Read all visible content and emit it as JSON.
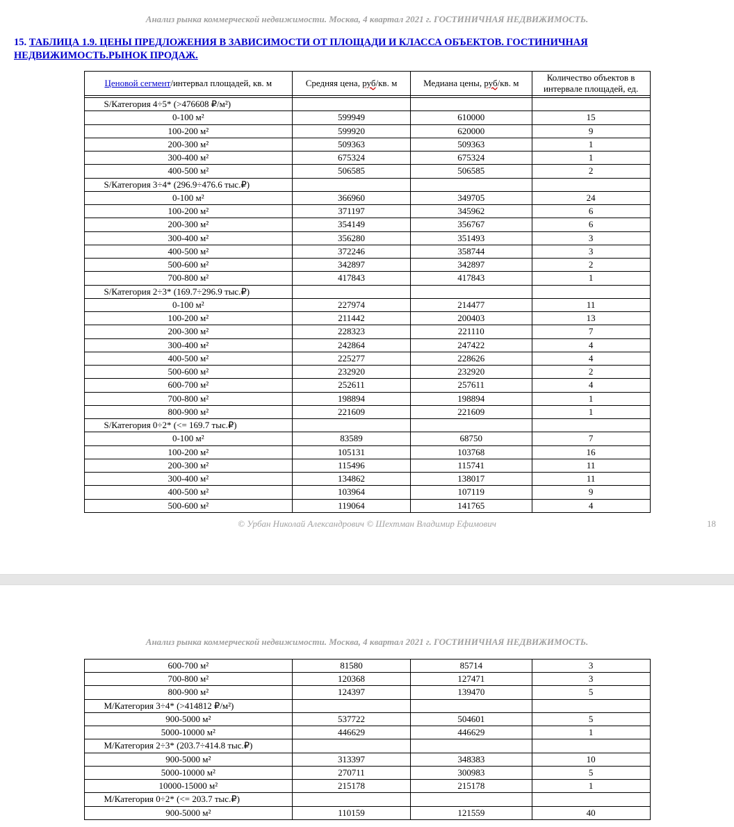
{
  "header": "Анализ рынка коммерческой недвижимости.   Москва, 4 квартал 2021 г.   ГОСТИНИЧНАЯ НЕДВИЖИМОСТЬ.",
  "section": {
    "number": "15.",
    "title": "ТАБЛИЦА 1.9. ЦЕНЫ ПРЕДЛОЖЕНИЯ В ЗАВИСИМОСТИ ОТ ПЛОЩАДИ И КЛАССА ОБЪЕКТОВ.  ГОСТИНИЧНАЯ НЕДВИЖИМОСТЬ.РЫНОК ПРОДАЖ."
  },
  "columns": {
    "c0_link": "Ценовой сегмент",
    "c0_rest": "/интервал площадей, кв. м",
    "c1_pre": "Средняя цена, ",
    "c1_sq": "руб",
    "c1_post": "/кв. м",
    "c2_pre": "Медиана цены, ",
    "c2_sq": "руб",
    "c2_post": "/кв. м",
    "c3": "Количество объектов в интервале площадей, ед."
  },
  "rows1": [
    {
      "cat": "S/Категория 4÷5* (>476608 ₽/м²)",
      "a": "",
      "b": "",
      "c": ""
    },
    {
      "cat": "0-100 м²",
      "a": "599949",
      "b": "610000",
      "c": "15"
    },
    {
      "cat": "100-200 м²",
      "a": "599920",
      "b": "620000",
      "c": "9"
    },
    {
      "cat": "200-300 м²",
      "a": "509363",
      "b": "509363",
      "c": "1"
    },
    {
      "cat": "300-400 м²",
      "a": "675324",
      "b": "675324",
      "c": "1"
    },
    {
      "cat": "400-500 м²",
      "a": "506585",
      "b": "506585",
      "c": "2"
    },
    {
      "cat": "S/Категория 3÷4* (296.9÷476.6 тыс.₽)",
      "a": "",
      "b": "",
      "c": ""
    },
    {
      "cat": "0-100 м²",
      "a": "366960",
      "b": "349705",
      "c": "24"
    },
    {
      "cat": "100-200 м²",
      "a": "371197",
      "b": "345962",
      "c": "6"
    },
    {
      "cat": "200-300 м²",
      "a": "354149",
      "b": "356767",
      "c": "6"
    },
    {
      "cat": "300-400 м²",
      "a": "356280",
      "b": "351493",
      "c": "3"
    },
    {
      "cat": "400-500 м²",
      "a": "372246",
      "b": "358744",
      "c": "3"
    },
    {
      "cat": "500-600 м²",
      "a": "342897",
      "b": "342897",
      "c": "2"
    },
    {
      "cat": "700-800 м²",
      "a": "417843",
      "b": "417843",
      "c": "1"
    },
    {
      "cat": "S/Категория 2÷3* (169.7÷296.9 тыс.₽)",
      "a": "",
      "b": "",
      "c": ""
    },
    {
      "cat": "0-100 м²",
      "a": "227974",
      "b": "214477",
      "c": "11"
    },
    {
      "cat": "100-200 м²",
      "a": "211442",
      "b": "200403",
      "c": "13"
    },
    {
      "cat": "200-300 м²",
      "a": "228323",
      "b": "221110",
      "c": "7"
    },
    {
      "cat": "300-400 м²",
      "a": "242864",
      "b": "247422",
      "c": "4"
    },
    {
      "cat": "400-500 м²",
      "a": "225277",
      "b": "228626",
      "c": "4"
    },
    {
      "cat": "500-600 м²",
      "a": "232920",
      "b": "232920",
      "c": "2"
    },
    {
      "cat": "600-700 м²",
      "a": "252611",
      "b": "257611",
      "c": "4"
    },
    {
      "cat": "700-800 м²",
      "a": "198894",
      "b": "198894",
      "c": "1"
    },
    {
      "cat": "800-900 м²",
      "a": "221609",
      "b": "221609",
      "c": "1"
    },
    {
      "cat": "S/Категория 0÷2* (<= 169.7 тыс.₽)",
      "a": "",
      "b": "",
      "c": ""
    },
    {
      "cat": "0-100 м²",
      "a": "83589",
      "b": "68750",
      "c": "7"
    },
    {
      "cat": "100-200 м²",
      "a": "105131",
      "b": "103768",
      "c": "16"
    },
    {
      "cat": "200-300 м²",
      "a": "115496",
      "b": "115741",
      "c": "11"
    },
    {
      "cat": "300-400 м²",
      "a": "134862",
      "b": "138017",
      "c": "11"
    },
    {
      "cat": "400-500 м²",
      "a": "103964",
      "b": "107119",
      "c": "9"
    },
    {
      "cat": "500-600 м²",
      "a": "119064",
      "b": "141765",
      "c": "4"
    }
  ],
  "rows2": [
    {
      "cat": "600-700 м²",
      "a": "81580",
      "b": "85714",
      "c": "3"
    },
    {
      "cat": "700-800 м²",
      "a": "120368",
      "b": "127471",
      "c": "3"
    },
    {
      "cat": "800-900 м²",
      "a": "124397",
      "b": "139470",
      "c": "5"
    },
    {
      "cat": "M/Категория 3÷4* (>414812 ₽/м²)",
      "a": "",
      "b": "",
      "c": ""
    },
    {
      "cat": "900-5000 м²",
      "a": "537722",
      "b": "504601",
      "c": "5"
    },
    {
      "cat": "5000-10000 м²",
      "a": "446629",
      "b": "446629",
      "c": "1"
    },
    {
      "cat": "M/Категория 2÷3* (203.7÷414.8 тыс.₽)",
      "a": "",
      "b": "",
      "c": ""
    },
    {
      "cat": "900-5000 м²",
      "a": "313397",
      "b": "348383",
      "c": "10"
    },
    {
      "cat": "5000-10000 м²",
      "a": "270711",
      "b": "300983",
      "c": "5"
    },
    {
      "cat": "10000-15000 м²",
      "a": "215178",
      "b": "215178",
      "c": "1"
    },
    {
      "cat": "M/Категория 0÷2* (<= 203.7 тыс.₽)",
      "a": "",
      "b": "",
      "c": ""
    },
    {
      "cat": "900-5000 м²",
      "a": "110159",
      "b": "121559",
      "c": "40"
    }
  ],
  "credits": "© Урбан Николай Александрович   © Шехтман Владимир Ефимович",
  "pagenum": "18",
  "catIndices1": [
    0,
    6,
    14,
    24
  ],
  "catIndices2": [
    3,
    6,
    10
  ]
}
